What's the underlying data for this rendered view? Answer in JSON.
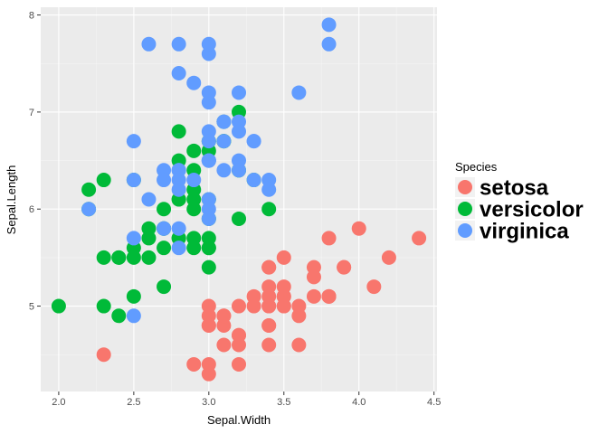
{
  "chart_data": {
    "type": "scatter",
    "xlabel": "Sepal.Width",
    "ylabel": "Sepal.Length",
    "xlim": [
      1.88,
      4.52
    ],
    "ylim": [
      4.12,
      8.08
    ],
    "x_ticks": [
      "2.0",
      "2.5",
      "3.0",
      "3.5",
      "4.0",
      "4.5"
    ],
    "y_ticks": [
      "5",
      "6",
      "7",
      "8"
    ],
    "grid": true,
    "legend": {
      "title": "Species",
      "position": "right"
    },
    "series": [
      {
        "name": "setosa",
        "color": "#F8766D",
        "points": [
          [
            3.5,
            5.1
          ],
          [
            3.0,
            4.9
          ],
          [
            3.2,
            4.7
          ],
          [
            3.1,
            4.6
          ],
          [
            3.6,
            5.0
          ],
          [
            3.9,
            5.4
          ],
          [
            3.4,
            4.6
          ],
          [
            3.4,
            5.0
          ],
          [
            2.9,
            4.4
          ],
          [
            3.1,
            4.9
          ],
          [
            3.7,
            5.4
          ],
          [
            3.4,
            4.8
          ],
          [
            3.0,
            4.8
          ],
          [
            3.0,
            4.3
          ],
          [
            4.0,
            5.8
          ],
          [
            4.4,
            5.7
          ],
          [
            3.9,
            5.4
          ],
          [
            3.5,
            5.1
          ],
          [
            3.8,
            5.7
          ],
          [
            3.8,
            5.1
          ],
          [
            3.4,
            5.4
          ],
          [
            3.7,
            5.1
          ],
          [
            3.6,
            4.6
          ],
          [
            3.3,
            5.1
          ],
          [
            3.4,
            4.8
          ],
          [
            3.0,
            5.0
          ],
          [
            3.4,
            5.0
          ],
          [
            3.5,
            5.2
          ],
          [
            3.4,
            5.2
          ],
          [
            3.2,
            4.7
          ],
          [
            3.1,
            4.8
          ],
          [
            3.4,
            5.4
          ],
          [
            4.1,
            5.2
          ],
          [
            4.2,
            5.5
          ],
          [
            3.1,
            4.9
          ],
          [
            3.2,
            5.0
          ],
          [
            3.5,
            5.5
          ],
          [
            3.6,
            4.9
          ],
          [
            3.0,
            4.4
          ],
          [
            3.4,
            5.1
          ],
          [
            3.5,
            5.0
          ],
          [
            2.3,
            4.5
          ],
          [
            3.2,
            4.4
          ],
          [
            3.5,
            5.0
          ],
          [
            3.8,
            5.1
          ],
          [
            3.0,
            4.8
          ],
          [
            3.8,
            5.1
          ],
          [
            3.2,
            4.6
          ],
          [
            3.7,
            5.3
          ],
          [
            3.3,
            5.0
          ]
        ]
      },
      {
        "name": "versicolor",
        "color": "#00BA38",
        "points": [
          [
            3.2,
            7.0
          ],
          [
            3.2,
            6.4
          ],
          [
            3.1,
            6.9
          ],
          [
            2.3,
            5.5
          ],
          [
            2.8,
            6.5
          ],
          [
            2.8,
            5.7
          ],
          [
            3.3,
            6.3
          ],
          [
            2.4,
            4.9
          ],
          [
            2.9,
            6.6
          ],
          [
            2.7,
            5.2
          ],
          [
            2.0,
            5.0
          ],
          [
            3.0,
            5.9
          ],
          [
            2.2,
            6.0
          ],
          [
            2.9,
            6.1
          ],
          [
            2.9,
            5.6
          ],
          [
            3.1,
            6.7
          ],
          [
            3.0,
            5.6
          ],
          [
            2.7,
            5.8
          ],
          [
            2.2,
            6.2
          ],
          [
            2.5,
            5.6
          ],
          [
            3.2,
            5.9
          ],
          [
            2.8,
            6.1
          ],
          [
            2.5,
            6.3
          ],
          [
            2.8,
            6.1
          ],
          [
            2.9,
            6.4
          ],
          [
            3.0,
            6.6
          ],
          [
            2.8,
            6.8
          ],
          [
            3.0,
            6.7
          ],
          [
            2.9,
            6.0
          ],
          [
            2.6,
            5.7
          ],
          [
            2.4,
            5.5
          ],
          [
            2.4,
            5.5
          ],
          [
            2.7,
            5.8
          ],
          [
            2.7,
            6.0
          ],
          [
            3.0,
            5.4
          ],
          [
            3.4,
            6.0
          ],
          [
            3.1,
            6.7
          ],
          [
            2.3,
            6.3
          ],
          [
            3.0,
            5.6
          ],
          [
            2.5,
            5.5
          ],
          [
            2.6,
            5.5
          ],
          [
            3.0,
            6.1
          ],
          [
            2.6,
            5.8
          ],
          [
            2.3,
            5.0
          ],
          [
            2.7,
            5.6
          ],
          [
            3.0,
            5.7
          ],
          [
            2.9,
            5.7
          ],
          [
            2.9,
            6.2
          ],
          [
            2.5,
            5.1
          ],
          [
            2.8,
            5.7
          ]
        ]
      },
      {
        "name": "virginica",
        "color": "#619CFF",
        "points": [
          [
            3.3,
            6.3
          ],
          [
            2.7,
            5.8
          ],
          [
            3.0,
            7.1
          ],
          [
            2.9,
            6.3
          ],
          [
            3.0,
            6.5
          ],
          [
            3.0,
            7.6
          ],
          [
            2.5,
            4.9
          ],
          [
            2.9,
            7.3
          ],
          [
            2.5,
            6.7
          ],
          [
            3.6,
            7.2
          ],
          [
            3.2,
            6.5
          ],
          [
            2.7,
            6.4
          ],
          [
            3.0,
            6.8
          ],
          [
            2.5,
            5.7
          ],
          [
            2.8,
            5.8
          ],
          [
            3.2,
            6.4
          ],
          [
            3.0,
            6.5
          ],
          [
            3.8,
            7.7
          ],
          [
            2.6,
            7.7
          ],
          [
            2.2,
            6.0
          ],
          [
            3.2,
            6.9
          ],
          [
            2.8,
            5.6
          ],
          [
            2.8,
            7.7
          ],
          [
            2.7,
            6.3
          ],
          [
            3.3,
            6.7
          ],
          [
            3.2,
            7.2
          ],
          [
            2.8,
            6.2
          ],
          [
            3.0,
            6.1
          ],
          [
            2.8,
            6.4
          ],
          [
            3.0,
            7.2
          ],
          [
            2.8,
            7.4
          ],
          [
            3.8,
            7.9
          ],
          [
            2.8,
            6.4
          ],
          [
            2.8,
            6.3
          ],
          [
            2.6,
            6.1
          ],
          [
            3.0,
            7.7
          ],
          [
            3.4,
            6.3
          ],
          [
            3.1,
            6.4
          ],
          [
            3.0,
            6.0
          ],
          [
            3.1,
            6.9
          ],
          [
            3.1,
            6.7
          ],
          [
            3.1,
            6.9
          ],
          [
            2.7,
            5.8
          ],
          [
            3.2,
            6.8
          ],
          [
            3.3,
            6.7
          ],
          [
            3.0,
            6.7
          ],
          [
            2.5,
            6.3
          ],
          [
            3.0,
            6.5
          ],
          [
            3.4,
            6.2
          ],
          [
            3.0,
            5.9
          ]
        ]
      }
    ]
  }
}
